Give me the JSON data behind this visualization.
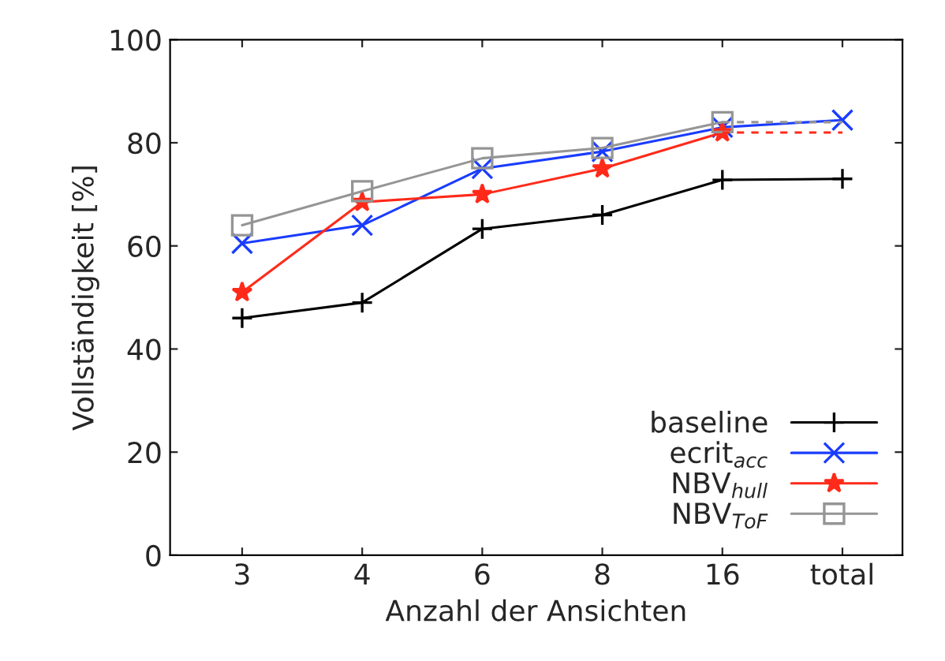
{
  "chart_data": {
    "type": "line",
    "xlabel": "Anzahl der Ansichten",
    "ylabel": "Vollständigkeit [%]",
    "categories": [
      "3",
      "4",
      "6",
      "8",
      "16",
      "total"
    ],
    "ylim": [
      0,
      100
    ],
    "yticks": [
      0,
      20,
      40,
      60,
      80,
      100
    ],
    "grid": false,
    "legend": "bottom right",
    "series": [
      {
        "name": "baseline",
        "color": "#000000",
        "marker": "plus",
        "line_style": "solid",
        "values": [
          46,
          49,
          63.3,
          66,
          72.8,
          73
        ]
      },
      {
        "name": "ecrit$_{acc}$",
        "color": "#1a3cff",
        "marker": "cross",
        "line_style": "solid",
        "values": [
          60.5,
          64,
          75,
          78.3,
          83,
          84.4
        ]
      },
      {
        "name": "NBV$_{hull}$",
        "color": "#ff2a1a",
        "marker": "star",
        "line_style": "solid",
        "values": [
          51,
          68.5,
          70,
          75,
          82,
          null
        ]
      },
      {
        "name": "NBV$_{ToF}$",
        "color": "#959595",
        "marker": "square",
        "line_style": "solid",
        "values": [
          64,
          70.6,
          77,
          79,
          84,
          null
        ]
      },
      {
        "color": "#ff2a1a",
        "line_style": "dashed",
        "values": [
          null,
          null,
          null,
          null,
          82,
          82
        ]
      },
      {
        "color": "#959595",
        "line_style": "dashed",
        "values": [
          null,
          null,
          null,
          null,
          84,
          84
        ]
      }
    ]
  }
}
